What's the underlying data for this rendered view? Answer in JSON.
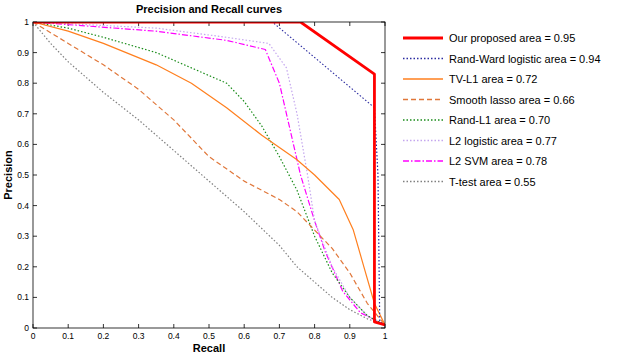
{
  "chart_data": {
    "type": "line",
    "title": "Precision and Recall curves",
    "x_label": "Recall",
    "y_label": "Precision",
    "xlim": [
      0,
      1
    ],
    "ylim": [
      0,
      1
    ],
    "xticks": [
      0,
      0.1,
      0.2,
      0.3,
      0.4,
      0.5,
      0.6,
      0.7,
      0.8,
      0.9,
      1
    ],
    "yticks": [
      0,
      0.1,
      0.2,
      0.3,
      0.4,
      0.5,
      0.6,
      0.7,
      0.8,
      0.9,
      1
    ],
    "grid": false,
    "legend": "right",
    "series": [
      {
        "name": "Our proposed area = 0.95",
        "color": "#ff0000",
        "line_style": "solid",
        "x": [
          0,
          0.76,
          0.97,
          0.97,
          0.97,
          1
        ],
        "values": [
          1,
          1,
          0.83,
          0.3,
          0.02,
          0.01
        ]
      },
      {
        "name": "Rand-Ward logistic area = 0.94",
        "color": "#2b2ba0",
        "line_style": "dotted",
        "x": [
          0,
          0.68,
          0.97,
          0.98,
          0.985,
          1
        ],
        "values": [
          1,
          1,
          0.72,
          0.5,
          0.02,
          0.01
        ]
      },
      {
        "name": "TV-L1 area = 0.72",
        "color": "#ff7f1e",
        "line_style": "solid",
        "x": [
          0,
          0.1,
          0.2,
          0.35,
          0.45,
          0.55,
          0.65,
          0.75,
          0.8,
          0.87,
          0.91,
          0.94,
          0.97,
          1
        ],
        "values": [
          1,
          0.97,
          0.93,
          0.86,
          0.8,
          0.72,
          0.63,
          0.55,
          0.5,
          0.42,
          0.32,
          0.2,
          0.08,
          0.01
        ]
      },
      {
        "name": "Smooth lasso area = 0.66",
        "color": "#e0773a",
        "line_style": "dashed",
        "x": [
          0,
          0.1,
          0.2,
          0.3,
          0.4,
          0.5,
          0.6,
          0.7,
          0.75,
          0.8,
          0.85,
          0.9,
          0.95,
          1
        ],
        "values": [
          1,
          0.93,
          0.86,
          0.78,
          0.68,
          0.56,
          0.48,
          0.42,
          0.38,
          0.32,
          0.26,
          0.18,
          0.08,
          0.01
        ]
      },
      {
        "name": "Rand-L1 area = 0.70",
        "color": "#1a8c1a",
        "line_style": "dotted",
        "x": [
          0,
          0.1,
          0.2,
          0.35,
          0.45,
          0.55,
          0.6,
          0.65,
          0.7,
          0.75,
          0.8,
          0.85,
          0.9,
          0.95,
          1
        ],
        "values": [
          1,
          0.98,
          0.95,
          0.9,
          0.85,
          0.8,
          0.74,
          0.66,
          0.56,
          0.45,
          0.3,
          0.18,
          0.1,
          0.04,
          0.01
        ]
      },
      {
        "name": "L2 logistic area = 0.77",
        "color": "#c4a6ee",
        "line_style": "dotted",
        "x": [
          0,
          0.35,
          0.55,
          0.67,
          0.72,
          0.75,
          0.78,
          0.8,
          0.85,
          0.9,
          0.95,
          1
        ],
        "values": [
          1,
          0.98,
          0.95,
          0.93,
          0.85,
          0.7,
          0.5,
          0.35,
          0.2,
          0.1,
          0.04,
          0.01
        ]
      },
      {
        "name": "L2 SVM area = 0.78",
        "color": "#ff00ff",
        "line_style": "dashdot",
        "x": [
          0,
          0.35,
          0.55,
          0.66,
          0.7,
          0.73,
          0.76,
          0.8,
          0.83,
          0.88,
          0.93,
          1
        ],
        "values": [
          1,
          0.97,
          0.94,
          0.91,
          0.8,
          0.65,
          0.5,
          0.35,
          0.25,
          0.12,
          0.05,
          0.01
        ]
      },
      {
        "name": "T-test area = 0.55",
        "color": "#808080",
        "line_style": "dotted",
        "x": [
          0,
          0.05,
          0.1,
          0.2,
          0.3,
          0.4,
          0.5,
          0.6,
          0.7,
          0.75,
          0.8,
          0.85,
          0.9,
          0.95,
          1
        ],
        "values": [
          1,
          0.93,
          0.87,
          0.77,
          0.68,
          0.58,
          0.48,
          0.38,
          0.27,
          0.2,
          0.15,
          0.1,
          0.06,
          0.03,
          0.01
        ]
      }
    ]
  }
}
